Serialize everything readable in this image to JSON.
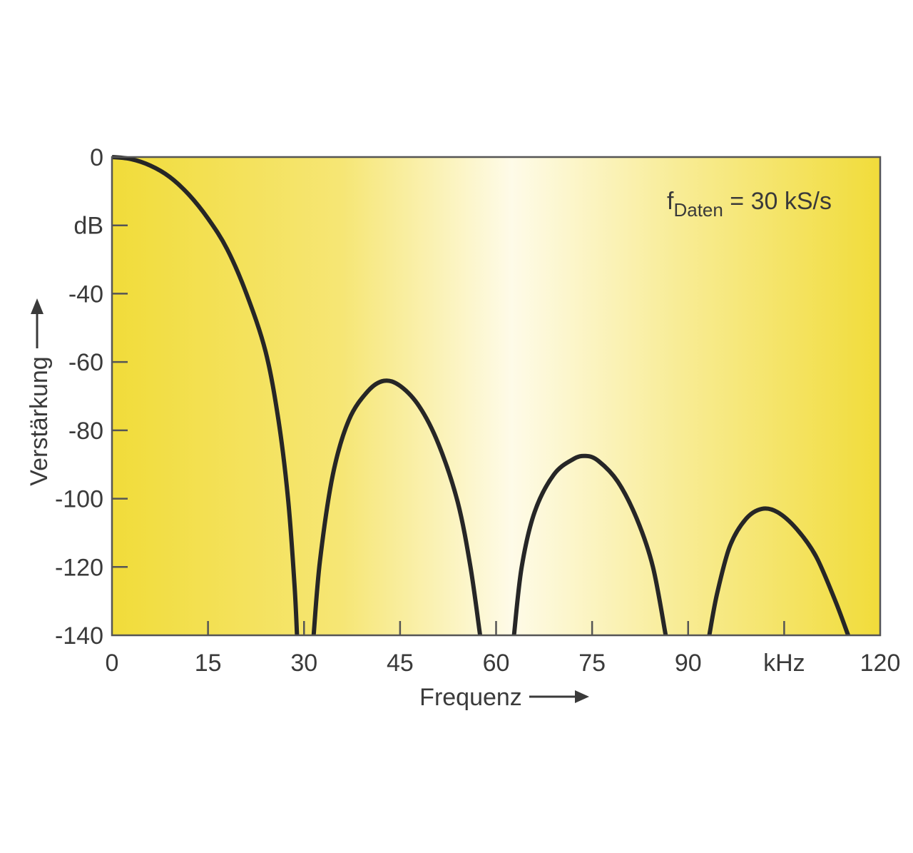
{
  "chart_data": {
    "type": "line",
    "annotation": {
      "base": "f",
      "subscript": "Daten",
      "rest": " = 30 kS/s"
    },
    "xlabel": "Frequenz",
    "ylabel": "Verstärkung",
    "y_unit_label": "dB",
    "x_unit_label": "kHz",
    "xlim": [
      0,
      120
    ],
    "ylim": [
      -140,
      0
    ],
    "x_ticks": [
      {
        "value": 0,
        "label": "0"
      },
      {
        "value": 15,
        "label": "15"
      },
      {
        "value": 30,
        "label": "30"
      },
      {
        "value": 45,
        "label": "45"
      },
      {
        "value": 60,
        "label": "60"
      },
      {
        "value": 75,
        "label": "75"
      },
      {
        "value": 90,
        "label": "90"
      },
      {
        "value": 105,
        "label": "kHz"
      },
      {
        "value": 120,
        "label": "120"
      }
    ],
    "y_ticks": [
      {
        "value": 0,
        "label": "0"
      },
      {
        "value": -20,
        "label": "dB"
      },
      {
        "value": -40,
        "label": "-40"
      },
      {
        "value": -60,
        "label": "-60"
      },
      {
        "value": -80,
        "label": "-80"
      },
      {
        "value": -100,
        "label": "-100"
      },
      {
        "value": -120,
        "label": "-120"
      },
      {
        "value": -140,
        "label": "-140"
      }
    ],
    "grid": false,
    "series": [
      {
        "segments": [
          [
            [
              0,
              0
            ],
            [
              3,
              -0.6
            ],
            [
              6,
              -2.5
            ],
            [
              9,
              -5.8
            ],
            [
              12,
              -11
            ],
            [
              15,
              -18
            ],
            [
              18,
              -27
            ],
            [
              21,
              -40
            ],
            [
              24,
              -57
            ],
            [
              26,
              -77
            ],
            [
              27.5,
              -100
            ],
            [
              28.5,
              -125
            ],
            [
              28.9,
              -140
            ]
          ],
          [
            [
              31.5,
              -140
            ],
            [
              32.5,
              -118
            ],
            [
              34.5,
              -93
            ],
            [
              37,
              -77
            ],
            [
              40,
              -68.5
            ],
            [
              42.5,
              -65.5
            ],
            [
              45,
              -67
            ],
            [
              48,
              -73
            ],
            [
              51,
              -84
            ],
            [
              54,
              -101
            ],
            [
              56,
              -120
            ],
            [
              57.5,
              -140
            ]
          ],
          [
            [
              62.8,
              -140
            ],
            [
              64,
              -120
            ],
            [
              66,
              -104
            ],
            [
              69,
              -93
            ],
            [
              72,
              -88.5
            ],
            [
              74,
              -87.5
            ],
            [
              76,
              -89
            ],
            [
              79,
              -95
            ],
            [
              82,
              -106
            ],
            [
              84.5,
              -120
            ],
            [
              86.5,
              -140
            ]
          ],
          [
            [
              93.3,
              -140
            ],
            [
              94.5,
              -128
            ],
            [
              96.5,
              -114
            ],
            [
              99,
              -106
            ],
            [
              101.5,
              -103
            ],
            [
              104,
              -104
            ],
            [
              107,
              -109
            ],
            [
              110,
              -117
            ],
            [
              113,
              -130
            ],
            [
              115,
              -140
            ]
          ]
        ]
      }
    ],
    "background_colors": {
      "edge": "#f1dc3a",
      "mid": "#fefbe8",
      "border": "#555555",
      "line": "#262626"
    }
  }
}
